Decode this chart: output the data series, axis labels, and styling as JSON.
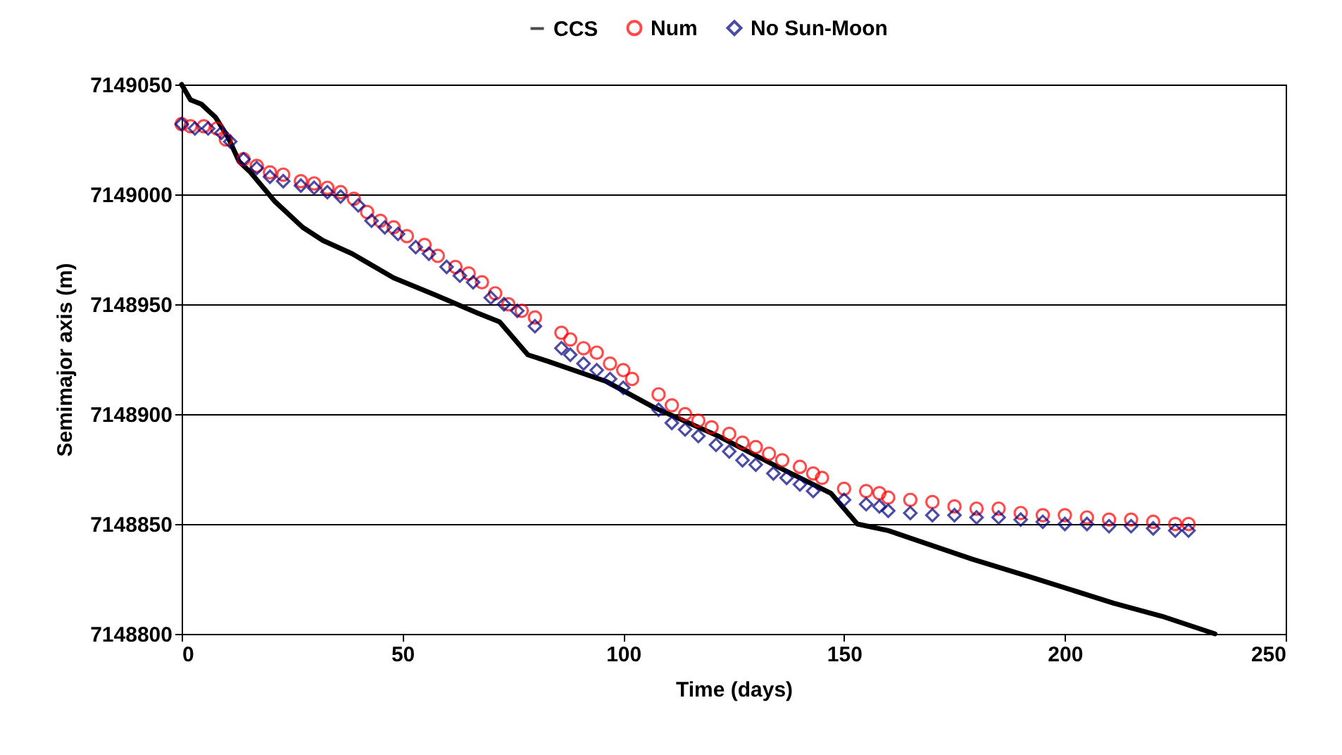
{
  "chart_data": {
    "type": "line",
    "xlabel": "Time (days)",
    "ylabel": "Semimajor axis (m)",
    "xlim": [
      0,
      250
    ],
    "xticks": [
      0,
      50,
      100,
      150,
      200,
      250
    ],
    "ylim": [
      7148800,
      7149050
    ],
    "yticks": [
      7148800,
      7148850,
      7148900,
      7148950,
      7149000,
      7149050
    ],
    "grid": "y",
    "legend": "top",
    "series": [
      {
        "name": "CCS",
        "type": "line",
        "marker": "none",
        "line_style": "solid",
        "color": "#000000",
        "x": [
          0,
          2,
          4.5,
          7.7,
          10.5,
          13,
          15.6,
          21,
          27.4,
          32,
          38.6,
          48,
          57.7,
          67,
          72,
          78.4,
          83,
          96,
          107,
          121.5,
          134,
          147,
          153,
          160,
          179,
          192,
          211,
          222,
          234
        ],
        "values": [
          7149050,
          7149043,
          7149041,
          7149035,
          7149026,
          7149015,
          7149010,
          7148997,
          7148985,
          7148979,
          7148973,
          7148962,
          7148954,
          7148946,
          7148942,
          7148927,
          7148924,
          7148915,
          7148903,
          7148890,
          7148877,
          7148864,
          7148850,
          7148847,
          7148834,
          7148826,
          7148814,
          7148808,
          7148800
        ]
      },
      {
        "name": "Num",
        "type": "scatter",
        "marker": "circle",
        "color": "#ff0000",
        "x": [
          0,
          2,
          5,
          8,
          10,
          14,
          17,
          20,
          23,
          27,
          30,
          33,
          36,
          39,
          42,
          45,
          48,
          51,
          55,
          58,
          62,
          65,
          68,
          71,
          74,
          77,
          80,
          86,
          88,
          91,
          94,
          97,
          100,
          102,
          108,
          111,
          114,
          117,
          120,
          124,
          127,
          130,
          133,
          136,
          140,
          143,
          145,
          150,
          155,
          158,
          160,
          165,
          170,
          175,
          180,
          185,
          190,
          195,
          200,
          205,
          210,
          215,
          220,
          225,
          228
        ],
        "values": [
          7149032,
          7149031,
          7149031,
          7149030,
          7149025,
          7149016,
          7149013,
          7149010,
          7149009,
          7149006,
          7149005,
          7149003,
          7149001,
          7148998,
          7148992,
          7148988,
          7148985,
          7148981,
          7148977,
          7148972,
          7148967,
          7148964,
          7148960,
          7148955,
          7148950,
          7148947,
          7148944,
          7148937,
          7148934,
          7148930,
          7148928,
          7148923,
          7148920,
          7148916,
          7148909,
          7148904,
          7148900,
          7148897,
          7148894,
          7148891,
          7148887,
          7148885,
          7148882,
          7148879,
          7148876,
          7148873,
          7148871,
          7148866,
          7148865,
          7148864,
          7148862,
          7148861,
          7148860,
          7148858,
          7148857,
          7148857,
          7148855,
          7148854,
          7148854,
          7148853,
          7148852,
          7148852,
          7148851,
          7148850,
          7148850
        ]
      },
      {
        "name": "No Sun-Moon",
        "type": "scatter",
        "marker": "diamond",
        "color": "#000080",
        "x": [
          0,
          3,
          6,
          9,
          11,
          14,
          17,
          20,
          23,
          27,
          30,
          33,
          36,
          40,
          43,
          46,
          49,
          53,
          56,
          60,
          63,
          66,
          70,
          73,
          76,
          80,
          86,
          88,
          91,
          94,
          97,
          100,
          108,
          111,
          114,
          117,
          121,
          124,
          127,
          130,
          134,
          137,
          140,
          143,
          150,
          155,
          158,
          160,
          165,
          170,
          175,
          180,
          185,
          190,
          195,
          200,
          205,
          210,
          215,
          220,
          225,
          228
        ],
        "values": [
          7149032,
          7149030,
          7149030,
          7149028,
          7149024,
          7149016,
          7149012,
          7149008,
          7149006,
          7149004,
          7149003,
          7149001,
          7148999,
          7148995,
          7148988,
          7148985,
          7148982,
          7148976,
          7148973,
          7148967,
          7148963,
          7148960,
          7148953,
          7148950,
          7148947,
          7148940,
          7148930,
          7148927,
          7148923,
          7148920,
          7148916,
          7148912,
          7148902,
          7148896,
          7148893,
          7148890,
          7148886,
          7148883,
          7148879,
          7148877,
          7148873,
          7148871,
          7148868,
          7148865,
          7148861,
          7148859,
          7148858,
          7148856,
          7148855,
          7148854,
          7148854,
          7148853,
          7148853,
          7148852,
          7148851,
          7148850,
          7148850,
          7148849,
          7148849,
          7148848,
          7148847,
          7148847
        ]
      }
    ]
  }
}
